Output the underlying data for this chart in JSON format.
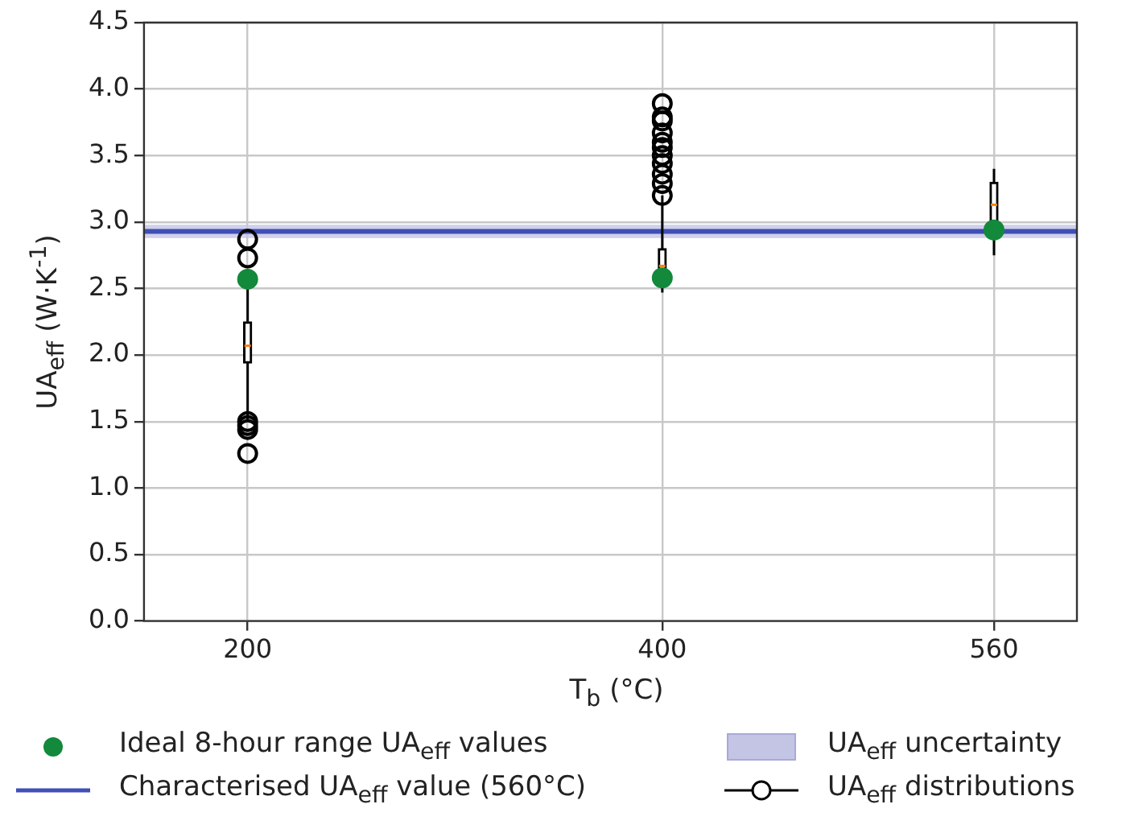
{
  "chart_data": {
    "type": "box",
    "xlabel": "T$_{b}$ (°C)",
    "ylabel": "UA$_{eff}$ (W·K$^{-1}$)",
    "xlim": [
      150,
      600
    ],
    "xticks": [
      200,
      400,
      560
    ],
    "ylim": [
      0,
      4.5
    ],
    "yticks": [
      {
        "value": 0,
        "label": "0.0"
      },
      {
        "value": 0.5,
        "label": "0.5"
      },
      {
        "value": 1,
        "label": "1.0"
      },
      {
        "value": 1.5,
        "label": "1.5"
      },
      {
        "value": 2,
        "label": "2.0"
      },
      {
        "value": 2.5,
        "label": "2.5"
      },
      {
        "value": 3,
        "label": "3.0"
      },
      {
        "value": 3.5,
        "label": "3.5"
      },
      {
        "value": 4,
        "label": "4.0"
      },
      {
        "value": 4.5,
        "label": "4.5"
      }
    ],
    "grid": true,
    "legend": "bottom",
    "marker": "circle",
    "series": [
      {
        "name": "Ideal 8-hour range UA$_{eff}$ values",
        "type": "scatter",
        "color": "#13893b",
        "x": [
          200,
          400,
          560
        ],
        "values": [
          2.57,
          2.58,
          2.94
        ]
      },
      {
        "name": "UA$_{eff}$ distributions",
        "color": "#000000",
        "x": [
          200,
          400,
          560
        ],
        "boxes": [
          {
            "low": 1.5,
            "q1": 1.94,
            "median": 2.07,
            "q3": 2.25,
            "high": 2.57,
            "outliers": [
              2.87,
              2.73,
              1.5,
              1.47,
              1.44,
              1.26
            ]
          },
          {
            "low": 2.47,
            "q1": 2.55,
            "median": 2.67,
            "q3": 2.8,
            "high": 3.2,
            "outliers": [
              3.89,
              3.79,
              3.76,
              3.67,
              3.6,
              3.56,
              3.5,
              3.44,
              3.36,
              3.29,
              3.2
            ]
          },
          {
            "low": 2.75,
            "q1": 2.9,
            "median": 3.13,
            "q3": 3.3,
            "high": 3.4
          }
        ]
      }
    ],
    "ref_lines": [
      {
        "axis": "y",
        "value": 2.93,
        "label": "Characterised UA$_{eff}$ value (560°C)",
        "color": "#3f4fb5"
      }
    ],
    "bands": [
      {
        "axis": "y",
        "from": 2.88,
        "to": 2.98,
        "label": "UA$_{eff}$ uncertainty",
        "color": "#c4c4e4"
      }
    ]
  }
}
